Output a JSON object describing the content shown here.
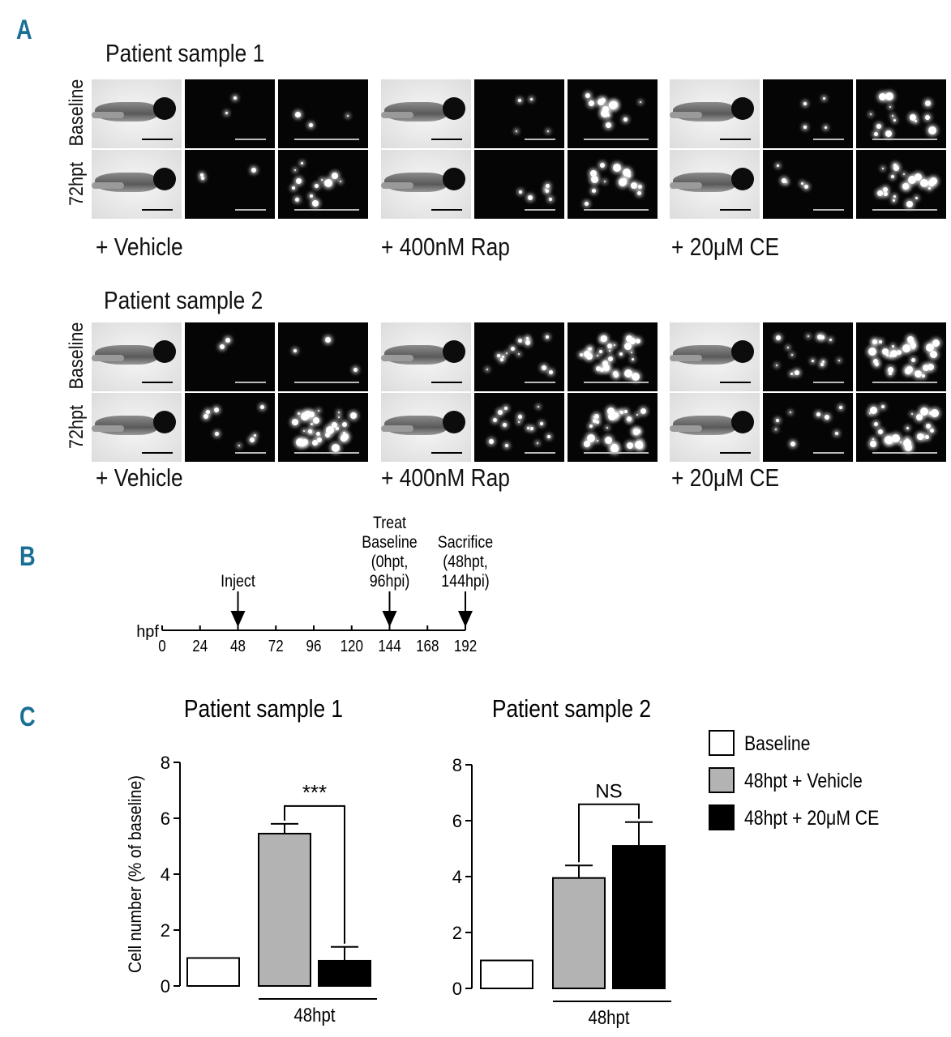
{
  "panels": {
    "a": "A",
    "b": "B",
    "c": "C"
  },
  "panel_a": {
    "groups": [
      {
        "title": "Patient sample 1",
        "row_labels": [
          "Baseline",
          "72hpt"
        ],
        "treatments": [
          "+ Vehicle",
          "+ 400nM Rap",
          "+ 20μM CE"
        ]
      },
      {
        "title": "Patient sample 2",
        "row_labels": [
          "Baseline",
          "72hpt"
        ],
        "treatments": [
          "+ Vehicle",
          "+ 400nM Rap",
          "+ 20μM CE"
        ]
      }
    ]
  },
  "panel_b": {
    "axis_label": "hpf",
    "ticks": [
      "0",
      "24",
      "48",
      "72",
      "96",
      "120",
      "144",
      "168",
      "192"
    ],
    "events": [
      {
        "at": 48,
        "lines": [
          "Inject"
        ]
      },
      {
        "at": 144,
        "lines": [
          "Treat",
          "Baseline",
          "(0hpt,",
          "96hpi)"
        ]
      },
      {
        "at": 192,
        "lines": [
          "Sacrifice",
          "(48hpt,",
          "144hpi)"
        ]
      }
    ]
  },
  "chart_data": [
    {
      "type": "bar",
      "title": "Patient sample 1",
      "ylabel": "Cell number (% of baseline)",
      "xlabel": "",
      "ylim": [
        0,
        8
      ],
      "yticks": [
        "0",
        "2",
        "4",
        "6",
        "8"
      ],
      "categories": [
        "Baseline",
        "48hpt + Vehicle",
        "48hpt + 20μM CE"
      ],
      "values": [
        1.0,
        5.45,
        0.9
      ],
      "errors": [
        0,
        0.35,
        0.5
      ],
      "colors": [
        "#ffffff",
        "#b3b3b3",
        "#000000"
      ],
      "group_label": "48hpt",
      "significance": "***"
    },
    {
      "type": "bar",
      "title": "Patient sample 2",
      "ylabel": "",
      "xlabel": "",
      "ylim": [
        0,
        8
      ],
      "yticks": [
        "0",
        "2",
        "4",
        "6",
        "8"
      ],
      "categories": [
        "Baseline",
        "48hpt + Vehicle",
        "48hpt + 20μM CE"
      ],
      "values": [
        1.0,
        3.95,
        5.1
      ],
      "errors": [
        0,
        0.45,
        0.85
      ],
      "colors": [
        "#ffffff",
        "#b3b3b3",
        "#000000"
      ],
      "group_label": "48hpt",
      "significance": "NS"
    }
  ],
  "legend": {
    "placement": "right",
    "items": [
      {
        "label": "Baseline",
        "color": "#ffffff"
      },
      {
        "label": "48hpt + Vehicle",
        "color": "#b3b3b3"
      },
      {
        "label": "48hpt + 20μM CE",
        "color": "#000000"
      }
    ]
  }
}
